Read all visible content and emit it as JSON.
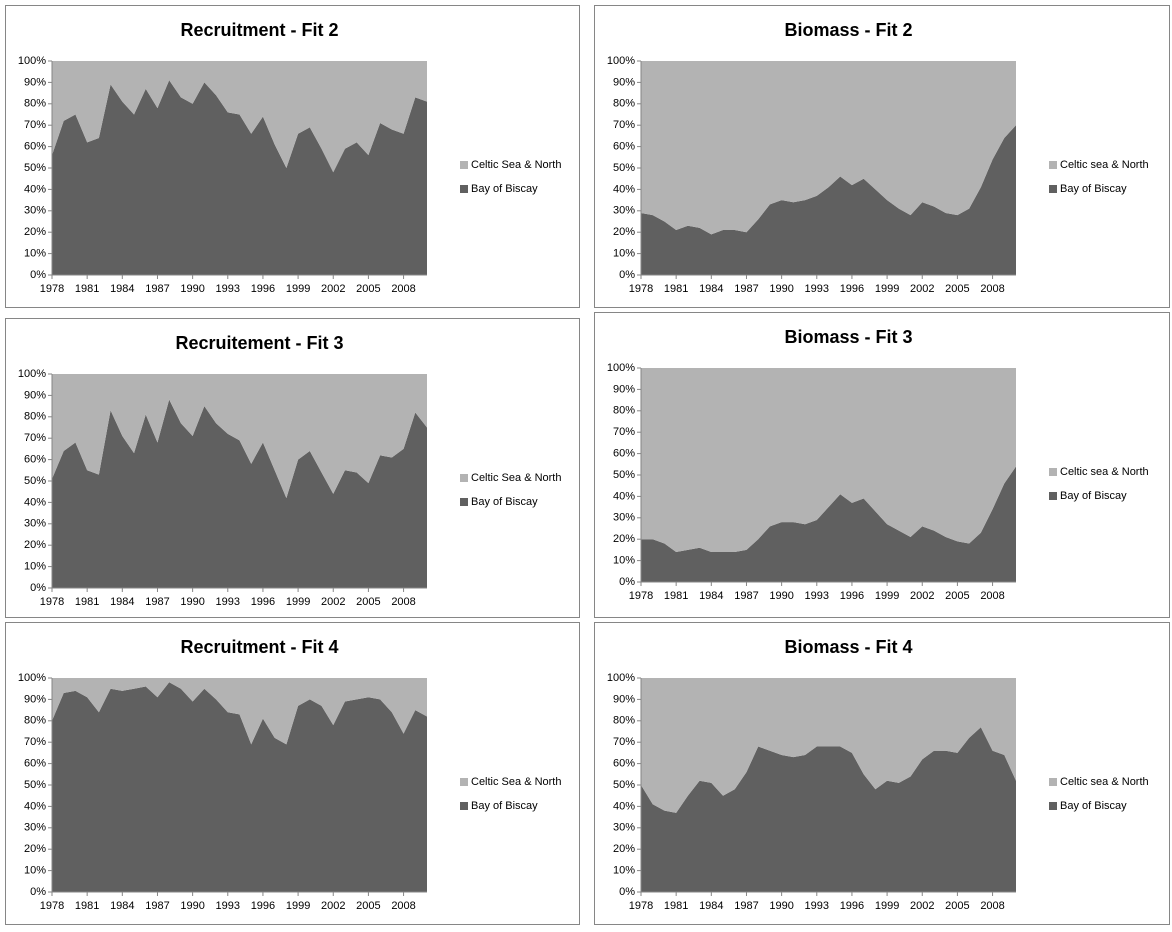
{
  "chart_data": [
    {
      "type": "area",
      "title": "Recruitment - Fit 2",
      "x": [
        1978,
        1979,
        1980,
        1981,
        1982,
        1983,
        1984,
        1985,
        1986,
        1987,
        1988,
        1989,
        1990,
        1991,
        1992,
        1993,
        1994,
        1995,
        1996,
        1997,
        1998,
        1999,
        2000,
        2001,
        2002,
        2003,
        2004,
        2005,
        2006,
        2007,
        2008,
        2009,
        2010
      ],
      "xlim": [
        1978,
        2010
      ],
      "xticks": [
        1978,
        1981,
        1984,
        1987,
        1990,
        1993,
        1996,
        1999,
        2002,
        2005,
        2008
      ],
      "ylim": [
        0,
        100
      ],
      "yticks": [
        {
          "value": 0,
          "label": "0%"
        },
        {
          "value": 10,
          "label": "10%"
        },
        {
          "value": 20,
          "label": "20%"
        },
        {
          "value": 30,
          "label": "30%"
        },
        {
          "value": 40,
          "label": "40%"
        },
        {
          "value": 50,
          "label": "50%"
        },
        {
          "value": 60,
          "label": "60%"
        },
        {
          "value": 70,
          "label": "70%"
        },
        {
          "value": 80,
          "label": "80%"
        },
        {
          "value": 90,
          "label": "90%"
        },
        {
          "value": 100,
          "label": "100%"
        }
      ],
      "series": [
        {
          "name": "Bay of Biscay",
          "color": "#606060",
          "values": [
            56,
            72,
            75,
            62,
            64,
            89,
            81,
            75,
            87,
            78,
            91,
            83,
            80,
            90,
            84,
            76,
            75,
            66,
            74,
            61,
            50,
            66,
            69,
            59,
            48,
            59,
            62,
            56,
            71,
            68,
            66,
            83,
            81
          ]
        },
        {
          "name": "Celtic Sea & North",
          "color": "#b3b3b3",
          "values": [
            44,
            28,
            25,
            38,
            36,
            11,
            19,
            25,
            13,
            22,
            9,
            17,
            20,
            10,
            16,
            24,
            25,
            34,
            26,
            39,
            50,
            34,
            31,
            41,
            52,
            41,
            38,
            44,
            29,
            32,
            34,
            17,
            19
          ]
        }
      ]
    },
    {
      "type": "area",
      "title": "Biomass - Fit 2",
      "x": [
        1978,
        1979,
        1980,
        1981,
        1982,
        1983,
        1984,
        1985,
        1986,
        1987,
        1988,
        1989,
        1990,
        1991,
        1992,
        1993,
        1994,
        1995,
        1996,
        1997,
        1998,
        1999,
        2000,
        2001,
        2002,
        2003,
        2004,
        2005,
        2006,
        2007,
        2008,
        2009,
        2010
      ],
      "xlim": [
        1978,
        2010
      ],
      "xticks": [
        1978,
        1981,
        1984,
        1987,
        1990,
        1993,
        1996,
        1999,
        2002,
        2005,
        2008
      ],
      "ylim": [
        0,
        100
      ],
      "yticks": [
        {
          "value": 0,
          "label": "0%"
        },
        {
          "value": 10,
          "label": "10%"
        },
        {
          "value": 20,
          "label": "20%"
        },
        {
          "value": 30,
          "label": "30%"
        },
        {
          "value": 40,
          "label": "40%"
        },
        {
          "value": 50,
          "label": "50%"
        },
        {
          "value": 60,
          "label": "60%"
        },
        {
          "value": 70,
          "label": "70%"
        },
        {
          "value": 80,
          "label": "80%"
        },
        {
          "value": 90,
          "label": "90%"
        },
        {
          "value": 100,
          "label": "100%"
        }
      ],
      "series": [
        {
          "name": "Bay of Biscay",
          "color": "#606060",
          "values": [
            29,
            28,
            25,
            21,
            23,
            22,
            19,
            21,
            21,
            20,
            26,
            33,
            35,
            34,
            35,
            37,
            41,
            46,
            42,
            45,
            40,
            35,
            31,
            28,
            34,
            32,
            29,
            28,
            31,
            41,
            54,
            64,
            70
          ]
        },
        {
          "name": "Celtic sea & North",
          "color": "#b3b3b3",
          "values": [
            71,
            72,
            75,
            79,
            77,
            78,
            81,
            79,
            79,
            80,
            74,
            67,
            65,
            66,
            65,
            63,
            59,
            54,
            58,
            55,
            60,
            65,
            69,
            72,
            66,
            68,
            71,
            72,
            69,
            59,
            46,
            36,
            30
          ]
        }
      ]
    },
    {
      "type": "area",
      "title": "Recruitement - Fit 3",
      "x": [
        1978,
        1979,
        1980,
        1981,
        1982,
        1983,
        1984,
        1985,
        1986,
        1987,
        1988,
        1989,
        1990,
        1991,
        1992,
        1993,
        1994,
        1995,
        1996,
        1997,
        1998,
        1999,
        2000,
        2001,
        2002,
        2003,
        2004,
        2005,
        2006,
        2007,
        2008,
        2009,
        2010
      ],
      "xlim": [
        1978,
        2010
      ],
      "xticks": [
        1978,
        1981,
        1984,
        1987,
        1990,
        1993,
        1996,
        1999,
        2002,
        2005,
        2008
      ],
      "ylim": [
        0,
        100
      ],
      "yticks": [
        {
          "value": 0,
          "label": "0%"
        },
        {
          "value": 10,
          "label": "10%"
        },
        {
          "value": 20,
          "label": "20%"
        },
        {
          "value": 30,
          "label": "30%"
        },
        {
          "value": 40,
          "label": "40%"
        },
        {
          "value": 50,
          "label": "50%"
        },
        {
          "value": 60,
          "label": "60%"
        },
        {
          "value": 70,
          "label": "70%"
        },
        {
          "value": 80,
          "label": "80%"
        },
        {
          "value": 90,
          "label": "90%"
        },
        {
          "value": 100,
          "label": "100%"
        }
      ],
      "series": [
        {
          "name": "Bay of Biscay",
          "color": "#606060",
          "values": [
            51,
            64,
            68,
            55,
            53,
            83,
            71,
            63,
            81,
            68,
            88,
            77,
            71,
            85,
            77,
            72,
            69,
            58,
            68,
            55,
            42,
            60,
            64,
            54,
            44,
            55,
            54,
            49,
            62,
            61,
            65,
            82,
            75
          ]
        },
        {
          "name": "Celtic Sea & North",
          "color": "#b3b3b3",
          "values": [
            49,
            36,
            32,
            45,
            47,
            17,
            29,
            37,
            19,
            32,
            12,
            23,
            29,
            15,
            23,
            28,
            31,
            42,
            32,
            45,
            58,
            40,
            36,
            46,
            56,
            45,
            46,
            51,
            38,
            39,
            35,
            18,
            25
          ]
        }
      ]
    },
    {
      "type": "area",
      "title": "Biomass - Fit 3",
      "x": [
        1978,
        1979,
        1980,
        1981,
        1982,
        1983,
        1984,
        1985,
        1986,
        1987,
        1988,
        1989,
        1990,
        1991,
        1992,
        1993,
        1994,
        1995,
        1996,
        1997,
        1998,
        1999,
        2000,
        2001,
        2002,
        2003,
        2004,
        2005,
        2006,
        2007,
        2008,
        2009,
        2010
      ],
      "xlim": [
        1978,
        2010
      ],
      "xticks": [
        1978,
        1981,
        1984,
        1987,
        1990,
        1993,
        1996,
        1999,
        2002,
        2005,
        2008
      ],
      "ylim": [
        0,
        100
      ],
      "yticks": [
        {
          "value": 0,
          "label": "0%"
        },
        {
          "value": 10,
          "label": "10%"
        },
        {
          "value": 20,
          "label": "20%"
        },
        {
          "value": 30,
          "label": "30%"
        },
        {
          "value": 40,
          "label": "40%"
        },
        {
          "value": 50,
          "label": "50%"
        },
        {
          "value": 60,
          "label": "60%"
        },
        {
          "value": 70,
          "label": "70%"
        },
        {
          "value": 80,
          "label": "80%"
        },
        {
          "value": 90,
          "label": "90%"
        },
        {
          "value": 100,
          "label": "100%"
        }
      ],
      "series": [
        {
          "name": "Bay of Biscay",
          "color": "#606060",
          "values": [
            20,
            20,
            18,
            14,
            15,
            16,
            14,
            14,
            14,
            15,
            20,
            26,
            28,
            28,
            27,
            29,
            35,
            41,
            37,
            39,
            33,
            27,
            24,
            21,
            26,
            24,
            21,
            19,
            18,
            23,
            34,
            46,
            54
          ]
        },
        {
          "name": "Celtic sea & North",
          "color": "#b3b3b3",
          "values": [
            80,
            80,
            82,
            86,
            85,
            84,
            86,
            86,
            86,
            85,
            80,
            74,
            72,
            72,
            73,
            71,
            65,
            59,
            63,
            61,
            67,
            73,
            76,
            79,
            74,
            76,
            79,
            81,
            82,
            77,
            66,
            54,
            46
          ]
        }
      ]
    },
    {
      "type": "area",
      "title": "Recruitment - Fit 4",
      "x": [
        1978,
        1979,
        1980,
        1981,
        1982,
        1983,
        1984,
        1985,
        1986,
        1987,
        1988,
        1989,
        1990,
        1991,
        1992,
        1993,
        1994,
        1995,
        1996,
        1997,
        1998,
        1999,
        2000,
        2001,
        2002,
        2003,
        2004,
        2005,
        2006,
        2007,
        2008,
        2009,
        2010
      ],
      "xlim": [
        1978,
        2010
      ],
      "xticks": [
        1978,
        1981,
        1984,
        1987,
        1990,
        1993,
        1996,
        1999,
        2002,
        2005,
        2008
      ],
      "ylim": [
        0,
        100
      ],
      "yticks": [
        {
          "value": 0,
          "label": "0%"
        },
        {
          "value": 10,
          "label": "10%"
        },
        {
          "value": 20,
          "label": "20%"
        },
        {
          "value": 30,
          "label": "30%"
        },
        {
          "value": 40,
          "label": "40%"
        },
        {
          "value": 50,
          "label": "50%"
        },
        {
          "value": 60,
          "label": "60%"
        },
        {
          "value": 70,
          "label": "70%"
        },
        {
          "value": 80,
          "label": "80%"
        },
        {
          "value": 90,
          "label": "90%"
        },
        {
          "value": 100,
          "label": "100%"
        }
      ],
      "series": [
        {
          "name": "Bay of Biscay",
          "color": "#606060",
          "values": [
            80,
            93,
            94,
            91,
            84,
            95,
            94,
            95,
            96,
            91,
            98,
            95,
            89,
            95,
            90,
            84,
            83,
            69,
            81,
            72,
            69,
            87,
            90,
            87,
            78,
            89,
            90,
            91,
            90,
            84,
            74,
            85,
            82
          ]
        },
        {
          "name": "Celtic Sea & North",
          "color": "#b3b3b3",
          "values": [
            20,
            7,
            6,
            9,
            16,
            5,
            6,
            5,
            4,
            9,
            2,
            5,
            11,
            5,
            10,
            16,
            17,
            31,
            19,
            28,
            31,
            13,
            10,
            13,
            22,
            11,
            10,
            9,
            10,
            16,
            26,
            15,
            18
          ]
        }
      ]
    },
    {
      "type": "area",
      "title": "Biomass - Fit 4",
      "x": [
        1978,
        1979,
        1980,
        1981,
        1982,
        1983,
        1984,
        1985,
        1986,
        1987,
        1988,
        1989,
        1990,
        1991,
        1992,
        1993,
        1994,
        1995,
        1996,
        1997,
        1998,
        1999,
        2000,
        2001,
        2002,
        2003,
        2004,
        2005,
        2006,
        2007,
        2008,
        2009,
        2010
      ],
      "xlim": [
        1978,
        2010
      ],
      "xticks": [
        1978,
        1981,
        1984,
        1987,
        1990,
        1993,
        1996,
        1999,
        2002,
        2005,
        2008
      ],
      "ylim": [
        0,
        100
      ],
      "yticks": [
        {
          "value": 0,
          "label": "0%"
        },
        {
          "value": 10,
          "label": "10%"
        },
        {
          "value": 20,
          "label": "20%"
        },
        {
          "value": 30,
          "label": "30%"
        },
        {
          "value": 40,
          "label": "40%"
        },
        {
          "value": 50,
          "label": "50%"
        },
        {
          "value": 60,
          "label": "60%"
        },
        {
          "value": 70,
          "label": "70%"
        },
        {
          "value": 80,
          "label": "80%"
        },
        {
          "value": 90,
          "label": "90%"
        },
        {
          "value": 100,
          "label": "100%"
        }
      ],
      "series": [
        {
          "name": "Bay of Biscay",
          "color": "#606060",
          "values": [
            50,
            41,
            38,
            37,
            45,
            52,
            51,
            45,
            48,
            56,
            68,
            66,
            64,
            63,
            64,
            68,
            68,
            68,
            65,
            55,
            48,
            52,
            51,
            54,
            62,
            66,
            66,
            65,
            72,
            77,
            66,
            64,
            52
          ]
        },
        {
          "name": "Celtic sea & North",
          "color": "#b3b3b3",
          "values": [
            50,
            59,
            62,
            63,
            55,
            48,
            49,
            55,
            52,
            44,
            32,
            34,
            36,
            37,
            36,
            32,
            32,
            32,
            35,
            45,
            52,
            48,
            49,
            46,
            38,
            34,
            34,
            35,
            28,
            23,
            34,
            36,
            48
          ]
        }
      ]
    }
  ]
}
